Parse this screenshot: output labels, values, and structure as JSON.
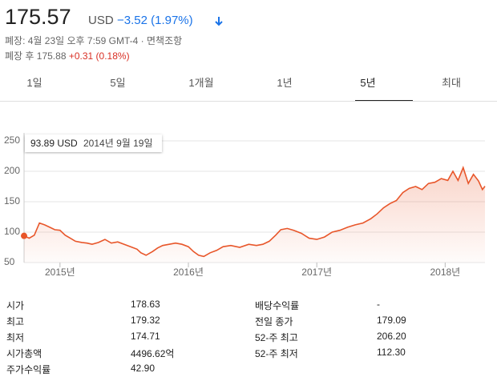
{
  "header": {
    "price": "175.57",
    "currency": "USD",
    "change": "−3.52 (1.97%)",
    "close_info": "폐장: 4월 23일 오후 7:59 GMT-4",
    "separator": "·",
    "disclaimer": "면책조항",
    "after_hours_label": "폐장 후 175.88",
    "after_hours_change": "+0.31 (0.18%)"
  },
  "tabs": {
    "items": [
      "1일",
      "5일",
      "1개월",
      "1년",
      "5년",
      "최대"
    ],
    "selected": "5년"
  },
  "chart_data": {
    "type": "line",
    "xlim": [
      2014.72,
      2018.31
    ],
    "ylim": [
      50,
      250
    ],
    "xticks": [
      {
        "value": 2015,
        "label": "2015년"
      },
      {
        "value": 2016,
        "label": "2016년"
      },
      {
        "value": 2017,
        "label": "2017년"
      },
      {
        "value": 2018,
        "label": "2018년"
      }
    ],
    "yticks": [
      50,
      100,
      150,
      200,
      250
    ],
    "grid": true,
    "color": "#e8562a",
    "tooltip": {
      "value": "93.89 USD",
      "date": "2014년 9월 19일"
    },
    "x": [
      2014.72,
      2014.76,
      2014.8,
      2014.84,
      2014.88,
      2014.92,
      2014.96,
      2015.0,
      2015.04,
      2015.08,
      2015.12,
      2015.17,
      2015.21,
      2015.25,
      2015.3,
      2015.35,
      2015.4,
      2015.45,
      2015.5,
      2015.55,
      2015.6,
      2015.63,
      2015.67,
      2015.72,
      2015.76,
      2015.8,
      2015.85,
      2015.9,
      2015.95,
      2016.0,
      2016.04,
      2016.08,
      2016.12,
      2016.17,
      2016.22,
      2016.27,
      2016.33,
      2016.4,
      2016.47,
      2016.53,
      2016.58,
      2016.63,
      2016.68,
      2016.72,
      2016.77,
      2016.82,
      2016.88,
      2016.94,
      2017.0,
      2017.06,
      2017.12,
      2017.18,
      2017.24,
      2017.3,
      2017.36,
      2017.42,
      2017.47,
      2017.52,
      2017.57,
      2017.62,
      2017.67,
      2017.72,
      2017.77,
      2017.82,
      2017.87,
      2017.92,
      2017.97,
      2018.02,
      2018.06,
      2018.1,
      2018.14,
      2018.18,
      2018.22,
      2018.26,
      2018.29,
      2018.31
    ],
    "values": [
      93.89,
      90,
      95,
      115,
      112,
      108,
      104,
      103,
      95,
      90,
      85,
      83,
      82,
      80,
      83,
      88,
      82,
      84,
      80,
      76,
      72,
      66,
      62,
      68,
      74,
      78,
      80,
      82,
      80,
      76,
      68,
      62,
      60,
      66,
      70,
      76,
      78,
      75,
      80,
      78,
      80,
      85,
      95,
      104,
      106,
      103,
      98,
      90,
      88,
      92,
      100,
      103,
      108,
      112,
      115,
      122,
      130,
      140,
      147,
      152,
      165,
      172,
      175,
      170,
      180,
      182,
      188,
      185,
      200,
      185,
      206,
      180,
      195,
      184,
      170,
      175.57
    ]
  },
  "stats": {
    "rows": [
      [
        "시가",
        "178.63",
        "배당수익률",
        "-"
      ],
      [
        "최고",
        "179.32",
        "전일 종가",
        "179.09"
      ],
      [
        "최저",
        "174.71",
        "52-주 최고",
        "206.20"
      ],
      [
        "시가총액",
        "4496.62억",
        "52-주 최저",
        "112.30"
      ],
      [
        "주가수익률",
        "42.90"
      ]
    ]
  }
}
